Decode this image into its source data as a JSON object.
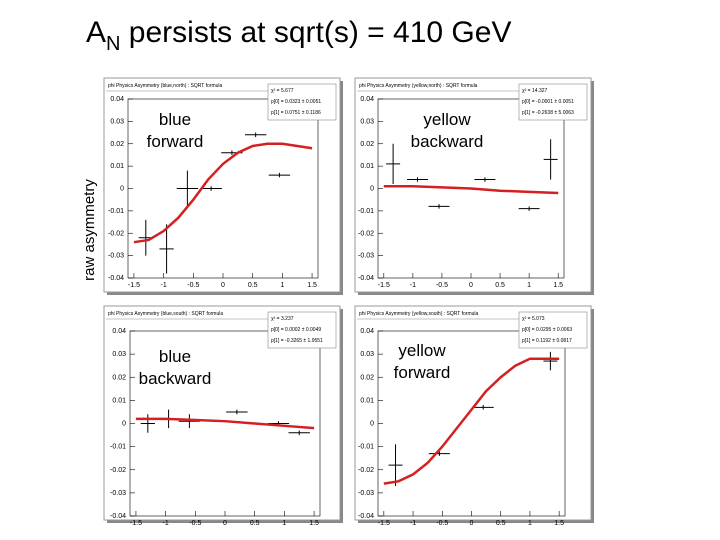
{
  "slide": {
    "title_main": "A",
    "title_sub": "N",
    "title_rest": " persists at sqrt(s) = 410 GeV",
    "ylabel": "raw asymmetry"
  },
  "chart_data": [
    {
      "type": "scatter",
      "title": "phi Physics Asymmetry (blue,north) : SQRT formula",
      "annotation": [
        "blue",
        "forward"
      ],
      "stats": [
        "χ² = 5.677",
        "p[0] = 0.0323 ± 0.0051",
        "p[1] = 0.0751 ± 0.1186"
      ],
      "x": [
        -1.3,
        -0.95,
        -0.6,
        -0.2,
        0.15,
        0.55,
        0.95
      ],
      "values": [
        -0.022,
        -0.027,
        0.0,
        0.0,
        0.016,
        0.024,
        0.006
      ],
      "xerr": [
        0.12,
        0.12,
        0.18,
        0.18,
        0.18,
        0.18,
        0.18
      ],
      "yerr": [
        0.008,
        0.011,
        0.008,
        0.001,
        0.001,
        0.001,
        0.001
      ],
      "fit_x": [
        -1.5,
        -1.25,
        -1,
        -0.75,
        -0.5,
        -0.25,
        0,
        0.25,
        0.5,
        0.75,
        1,
        1.25,
        1.5
      ],
      "fit_y": [
        -0.024,
        -0.023,
        -0.019,
        -0.013,
        -0.005,
        0.004,
        0.011,
        0.016,
        0.019,
        0.02,
        0.02,
        0.019,
        0.018
      ],
      "color": "#d42020",
      "xlim": [
        -1.6,
        1.6
      ],
      "ylim": [
        -0.04,
        0.04
      ],
      "xticks": [
        -1.5,
        -1,
        -0.5,
        0,
        0.5,
        1,
        1.5
      ],
      "yticks": [
        -0.04,
        -0.03,
        -0.02,
        -0.01,
        0,
        0.01,
        0.02,
        0.03,
        0.04
      ]
    },
    {
      "type": "scatter",
      "title": "phi Physics Asymmetry (yellow,north) : SQRT formula",
      "annotation": [
        "yellow",
        "backward"
      ],
      "stats": [
        "χ² = 14.327",
        "p[0] = -0.0001 ± 0.0051",
        "p[1] = -0.2638 ± 5.0063"
      ],
      "x": [
        -1.34,
        -0.92,
        -0.55,
        0.24,
        1.0,
        1.37
      ],
      "values": [
        0.011,
        0.004,
        -0.008,
        0.004,
        -0.009,
        0.013
      ],
      "xerr": [
        0.12,
        0.18,
        0.18,
        0.18,
        0.18,
        0.12
      ],
      "yerr": [
        0.009,
        0.001,
        0.001,
        0.001,
        0.001,
        0.009
      ],
      "fit_x": [
        -1.5,
        -1,
        -0.5,
        0,
        0.5,
        1,
        1.5
      ],
      "fit_y": [
        0.001,
        0.001,
        0.0005,
        0.0,
        -0.001,
        -0.0015,
        -0.002
      ],
      "color": "#d42020",
      "xlim": [
        -1.6,
        1.6
      ],
      "ylim": [
        -0.04,
        0.04
      ],
      "xticks": [
        -1.5,
        -1,
        -0.5,
        0,
        0.5,
        1,
        1.5
      ],
      "yticks": [
        -0.04,
        -0.03,
        -0.02,
        -0.01,
        0,
        0.01,
        0.02,
        0.03,
        0.04
      ]
    },
    {
      "type": "scatter",
      "title": "phi Physics Asymmetry (blue,south) : SQRT formula",
      "annotation": [
        "blue",
        "backward"
      ],
      "stats": [
        "χ² = 3.237",
        "p[0] = 0.0002 ± 0.0049",
        "p[1] = -0.3265 ± 1.9551"
      ],
      "x": [
        -1.3,
        -0.95,
        -0.6,
        0.2,
        0.9,
        1.25
      ],
      "values": [
        0.0,
        0.002,
        0.001,
        0.005,
        0.0,
        -0.004
      ],
      "xerr": [
        0.12,
        0.18,
        0.18,
        0.18,
        0.18,
        0.18
      ],
      "yerr": [
        0.004,
        0.004,
        0.003,
        0.001,
        0.001,
        0.001
      ],
      "fit_x": [
        -1.5,
        -1,
        -0.5,
        0,
        0.5,
        1,
        1.5
      ],
      "fit_y": [
        0.002,
        0.002,
        0.0015,
        0.001,
        0.0,
        -0.001,
        -0.002
      ],
      "color": "#d42020",
      "xlim": [
        -1.6,
        1.6
      ],
      "ylim": [
        -0.04,
        0.04
      ],
      "xticks": [
        -1.5,
        -1,
        -0.5,
        0,
        0.5,
        1,
        1.5
      ],
      "yticks": [
        -0.04,
        -0.03,
        -0.02,
        -0.01,
        0,
        0.01,
        0.02,
        0.03,
        0.04
      ]
    },
    {
      "type": "scatter",
      "title": "phi Physics Asymmetry (yellow,south) : SQRT formula",
      "annotation": [
        "yellow",
        "forward"
      ],
      "stats": [
        "χ² = 5.073",
        "p[0] = 0.0295 ± 0.0063",
        "p[1] = 0.1192 ± 0.0817"
      ],
      "x": [
        -1.3,
        -0.55,
        0.2,
        1.35
      ],
      "values": [
        -0.018,
        -0.013,
        0.007,
        0.027
      ],
      "xerr": [
        0.12,
        0.18,
        0.18,
        0.12
      ],
      "yerr": [
        0.009,
        0.001,
        0.001,
        0.004
      ],
      "fit_x": [
        -1.5,
        -1.25,
        -1,
        -0.75,
        -0.5,
        -0.25,
        0,
        0.25,
        0.5,
        0.75,
        1,
        1.25,
        1.5
      ],
      "fit_y": [
        -0.026,
        -0.025,
        -0.022,
        -0.017,
        -0.01,
        -0.002,
        0.006,
        0.014,
        0.02,
        0.025,
        0.028,
        0.028,
        0.028
      ],
      "color": "#d42020",
      "xlim": [
        -1.6,
        1.6
      ],
      "ylim": [
        -0.04,
        0.04
      ],
      "xticks": [
        -1.5,
        -1,
        -0.5,
        0,
        0.5,
        1,
        1.5
      ],
      "yticks": [
        -0.04,
        -0.03,
        -0.02,
        -0.01,
        0,
        0.01,
        0.02,
        0.03,
        0.04
      ]
    }
  ]
}
